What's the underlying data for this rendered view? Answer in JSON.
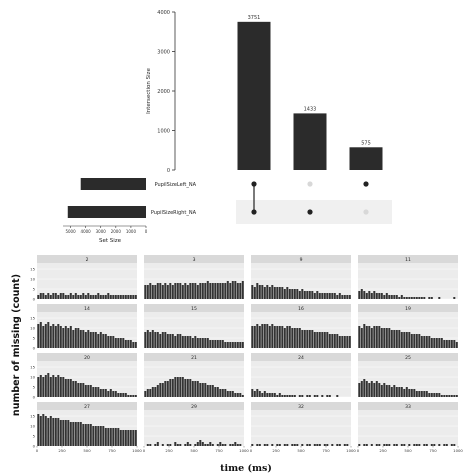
{
  "chart_data": [
    {
      "type": "bar",
      "subtype": "upset",
      "ylabel": "Intersection Size",
      "ylim": [
        0,
        4000
      ],
      "yticks": [
        "0",
        "1000",
        "2000",
        "3000",
        "4000"
      ],
      "intersections": [
        {
          "sets": [
            "PupilSizeLeft_NA",
            "PupilSizeRight_NA"
          ],
          "value": 3751,
          "label": "3751"
        },
        {
          "sets": [
            "PupilSizeRight_NA"
          ],
          "value": 1433,
          "label": "1433"
        },
        {
          "sets": [
            "PupilSizeLeft_NA"
          ],
          "value": 575,
          "label": "575"
        }
      ],
      "sets": [
        {
          "name": "PupilSizeLeft_NA",
          "size": 4326
        },
        {
          "name": "PupilSizeRight_NA",
          "size": 5184
        }
      ],
      "set_size_label": "Set Size",
      "set_size_ticks": [
        "5000",
        "4000",
        "3000",
        "2000",
        "1000",
        "0"
      ],
      "set_size_lim": [
        0,
        5500
      ]
    },
    {
      "type": "bar",
      "subtype": "facet",
      "xlabel": "time (ms)",
      "ylabel": "number of missing (count)",
      "xlim": [
        0,
        1000
      ],
      "ylim": [
        0,
        18
      ],
      "xticks": [
        "0",
        "250",
        "500",
        "750",
        "1000"
      ],
      "yticks": [
        "0",
        "5",
        "10",
        "15"
      ],
      "panels": [
        {
          "id": "2",
          "values": [
            2,
            3,
            3,
            2,
            3,
            2,
            3,
            3,
            2,
            3,
            3,
            2,
            2,
            3,
            2,
            3,
            2,
            2,
            3,
            2,
            3,
            2,
            2,
            2,
            3,
            2,
            2,
            2,
            3,
            2,
            2,
            2,
            2,
            2,
            2,
            2,
            2,
            2,
            2,
            2
          ]
        },
        {
          "id": "3",
          "values": [
            7,
            7,
            8,
            7,
            7,
            8,
            8,
            7,
            8,
            7,
            8,
            7,
            8,
            8,
            8,
            7,
            8,
            7,
            8,
            8,
            8,
            7,
            8,
            8,
            8,
            9,
            8,
            8,
            8,
            8,
            8,
            8,
            8,
            9,
            8,
            9,
            9,
            8,
            8,
            9
          ]
        },
        {
          "id": "9",
          "values": [
            7,
            6,
            8,
            7,
            7,
            6,
            7,
            6,
            7,
            6,
            6,
            6,
            6,
            5,
            6,
            5,
            5,
            5,
            5,
            4,
            5,
            4,
            4,
            4,
            4,
            3,
            4,
            3,
            3,
            3,
            3,
            3,
            3,
            3,
            2,
            3,
            2,
            2,
            2,
            2
          ]
        },
        {
          "id": "11",
          "values": [
            4,
            5,
            4,
            3,
            4,
            3,
            4,
            3,
            3,
            3,
            2,
            3,
            2,
            2,
            2,
            2,
            1,
            2,
            1,
            1,
            1,
            1,
            1,
            1,
            1,
            1,
            1,
            0,
            1,
            1,
            0,
            0,
            1,
            0,
            0,
            0,
            0,
            0,
            1,
            0
          ]
        },
        {
          "id": "14",
          "values": [
            12,
            13,
            11,
            12,
            13,
            11,
            12,
            11,
            12,
            11,
            10,
            11,
            10,
            11,
            9,
            10,
            10,
            9,
            9,
            8,
            9,
            8,
            8,
            8,
            7,
            8,
            7,
            7,
            6,
            6,
            6,
            5,
            5,
            5,
            5,
            4,
            4,
            4,
            3,
            3
          ]
        },
        {
          "id": "15",
          "values": [
            8,
            9,
            8,
            9,
            8,
            8,
            7,
            8,
            8,
            7,
            7,
            7,
            6,
            7,
            7,
            6,
            6,
            6,
            6,
            5,
            6,
            5,
            5,
            5,
            5,
            5,
            4,
            4,
            4,
            4,
            4,
            4,
            3,
            3,
            3,
            3,
            3,
            3,
            3,
            3
          ]
        },
        {
          "id": "16",
          "values": [
            11,
            11,
            12,
            11,
            12,
            12,
            12,
            11,
            12,
            11,
            11,
            11,
            11,
            10,
            11,
            11,
            10,
            10,
            10,
            10,
            9,
            9,
            9,
            9,
            9,
            8,
            8,
            8,
            8,
            8,
            8,
            7,
            7,
            7,
            7,
            6,
            6,
            6,
            6,
            6
          ]
        },
        {
          "id": "19",
          "values": [
            11,
            10,
            12,
            11,
            11,
            10,
            11,
            11,
            11,
            10,
            10,
            10,
            10,
            9,
            9,
            9,
            9,
            8,
            8,
            8,
            8,
            7,
            7,
            7,
            7,
            6,
            6,
            6,
            6,
            5,
            5,
            5,
            5,
            5,
            4,
            4,
            4,
            4,
            4,
            3
          ]
        },
        {
          "id": "20",
          "values": [
            10,
            11,
            10,
            11,
            12,
            10,
            11,
            10,
            11,
            10,
            10,
            9,
            9,
            9,
            8,
            8,
            7,
            7,
            7,
            6,
            6,
            6,
            5,
            5,
            5,
            4,
            4,
            4,
            3,
            4,
            3,
            3,
            2,
            2,
            2,
            2,
            1,
            1,
            1,
            1
          ]
        },
        {
          "id": "21",
          "values": [
            3,
            4,
            4,
            5,
            5,
            6,
            7,
            7,
            8,
            8,
            9,
            9,
            10,
            10,
            10,
            10,
            9,
            9,
            9,
            8,
            8,
            8,
            7,
            7,
            7,
            6,
            6,
            6,
            5,
            5,
            4,
            4,
            4,
            3,
            3,
            3,
            2,
            2,
            2,
            1
          ]
        },
        {
          "id": "24",
          "values": [
            4,
            3,
            4,
            3,
            2,
            3,
            2,
            2,
            2,
            2,
            1,
            2,
            1,
            1,
            1,
            1,
            1,
            1,
            0,
            1,
            1,
            0,
            1,
            1,
            0,
            1,
            1,
            0,
            1,
            0,
            1,
            1,
            0,
            0,
            1,
            0,
            0,
            0,
            0,
            0
          ]
        },
        {
          "id": "25",
          "values": [
            7,
            8,
            9,
            8,
            7,
            8,
            7,
            8,
            7,
            6,
            7,
            6,
            6,
            5,
            6,
            5,
            5,
            5,
            4,
            5,
            4,
            4,
            4,
            3,
            3,
            3,
            3,
            3,
            2,
            2,
            2,
            2,
            2,
            1,
            1,
            1,
            1,
            1,
            1,
            1
          ]
        },
        {
          "id": "27",
          "values": [
            16,
            15,
            16,
            15,
            14,
            15,
            14,
            14,
            14,
            13,
            13,
            13,
            13,
            12,
            12,
            12,
            12,
            12,
            11,
            11,
            11,
            11,
            10,
            10,
            10,
            10,
            10,
            9,
            9,
            9,
            9,
            9,
            9,
            8,
            8,
            8,
            8,
            8,
            8,
            8
          ]
        },
        {
          "id": "29",
          "values": [
            0,
            1,
            1,
            0,
            1,
            2,
            0,
            1,
            0,
            1,
            1,
            0,
            2,
            1,
            1,
            0,
            1,
            2,
            1,
            0,
            1,
            2,
            3,
            2,
            1,
            1,
            2,
            1,
            0,
            1,
            2,
            1,
            1,
            0,
            1,
            1,
            2,
            1,
            1,
            0
          ]
        },
        {
          "id": "32",
          "values": [
            1,
            0,
            1,
            1,
            0,
            1,
            1,
            0,
            1,
            0,
            1,
            1,
            0,
            1,
            1,
            0,
            1,
            1,
            1,
            0,
            1,
            0,
            1,
            1,
            0,
            1,
            1,
            1,
            0,
            1,
            1,
            0,
            1,
            0,
            1,
            1,
            0,
            1,
            1,
            0
          ]
        },
        {
          "id": "33",
          "values": [
            1,
            0,
            1,
            1,
            0,
            1,
            0,
            1,
            1,
            0,
            1,
            1,
            1,
            0,
            1,
            1,
            0,
            1,
            1,
            0,
            1,
            0,
            1,
            1,
            1,
            0,
            1,
            1,
            0,
            1,
            1,
            0,
            1,
            0,
            1,
            1,
            0,
            1,
            1,
            0
          ]
        }
      ]
    }
  ]
}
